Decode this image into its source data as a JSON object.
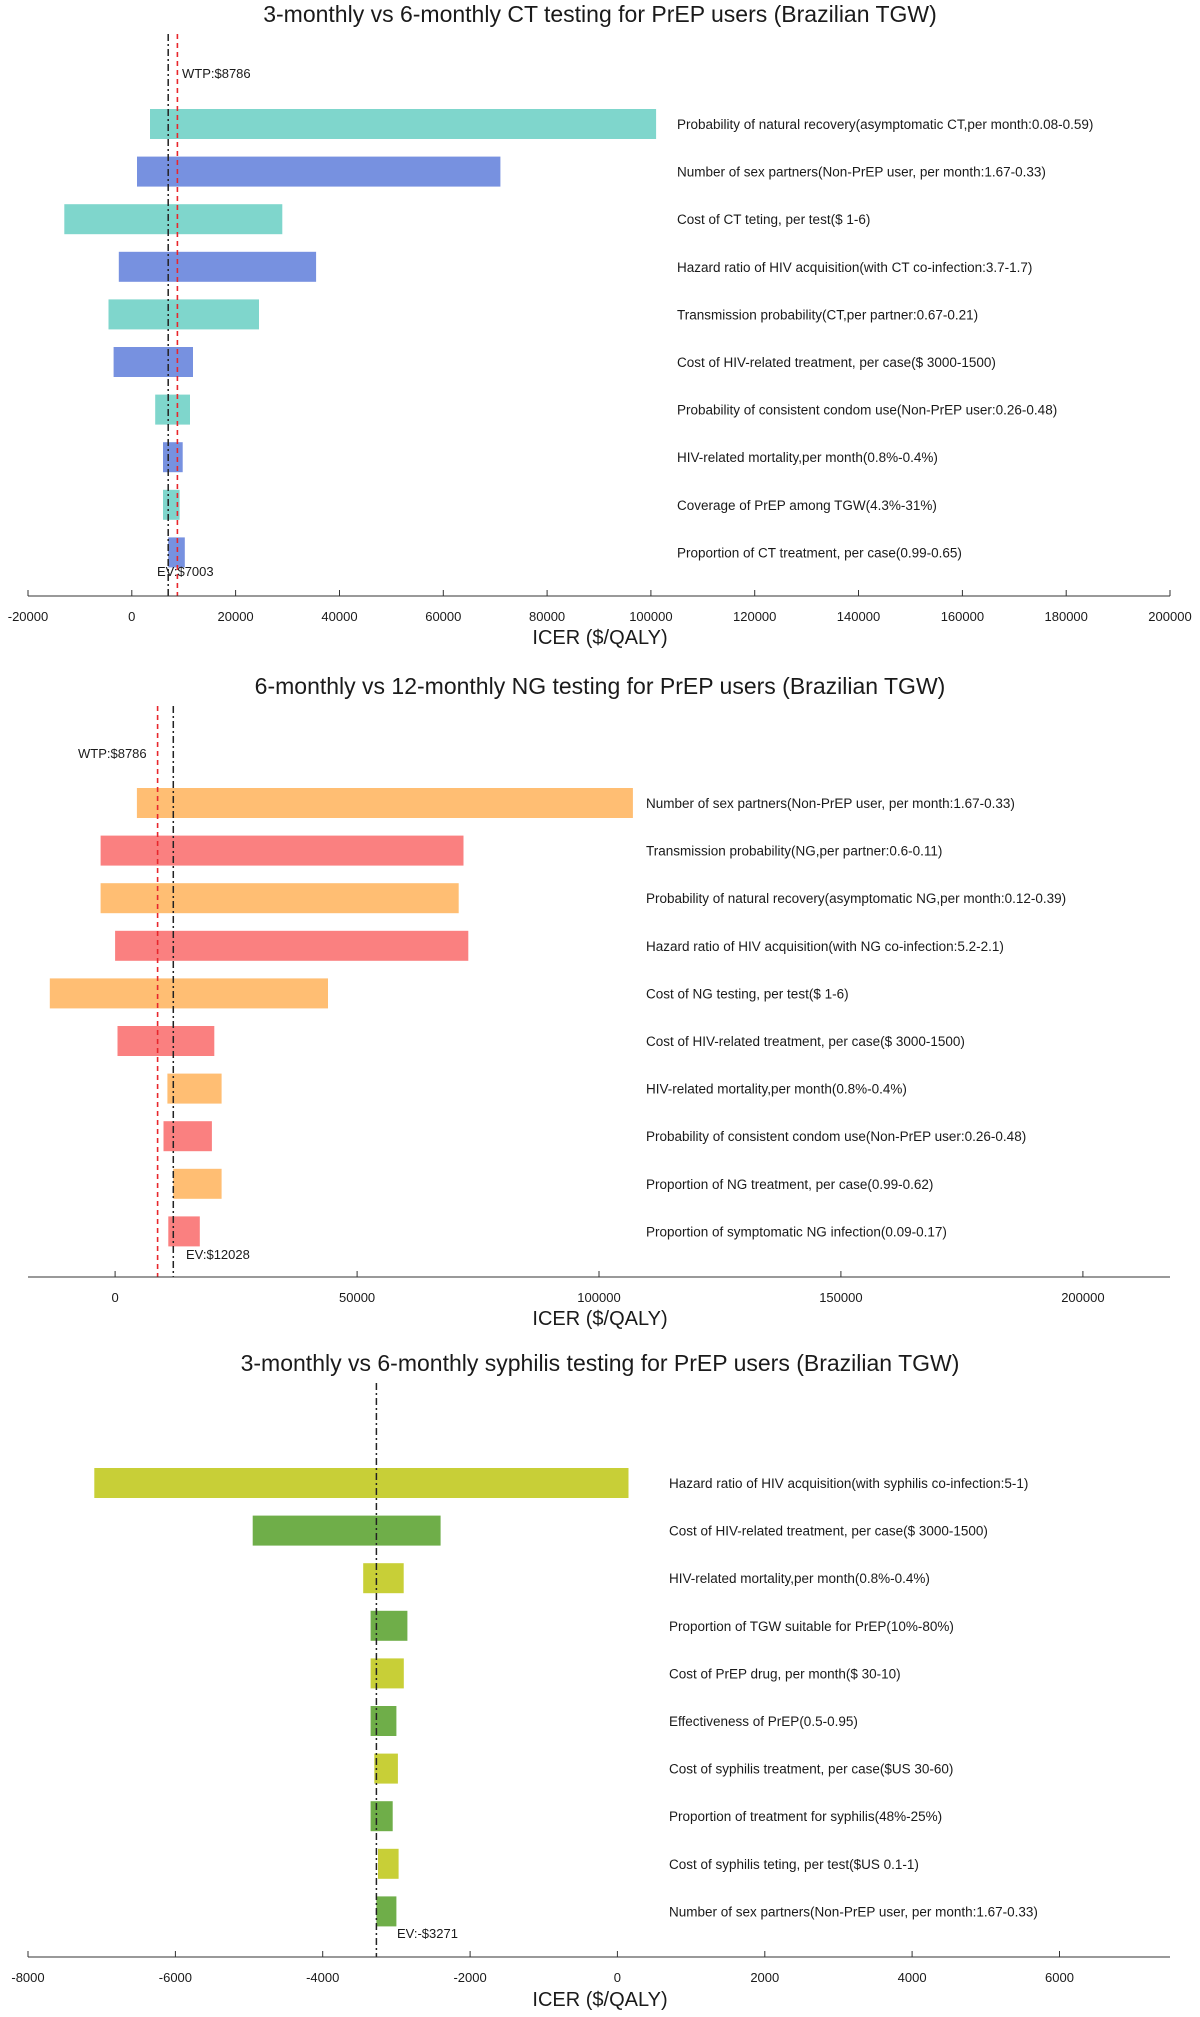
{
  "chart_data": [
    {
      "type": "bar",
      "subtype": "tornado",
      "title": "3-monthly vs 6-monthly CT testing for PrEP users (Brazilian TGW)",
      "xlabel": "ICER ($/QALY)",
      "xlim": [
        -20000,
        200000
      ],
      "xticks": [
        -20000,
        0,
        20000,
        40000,
        60000,
        80000,
        100000,
        120000,
        140000,
        160000,
        180000,
        200000
      ],
      "xtick_labels": [
        "-20000",
        "0",
        "20000",
        "40000",
        "60000",
        "80000",
        "100000",
        "120000",
        "140000",
        "160000",
        "180000",
        "200000"
      ],
      "colors": [
        "#7fd6cc",
        "#7791e0"
      ],
      "ev": 7003,
      "ev_label": "EV:$7003",
      "wtp": 8786,
      "wtp_label": "WTP:$8786",
      "parameters": [
        {
          "label": "Probability of natural recovery(asymptomatic CT,per month:0.08-0.59)",
          "low": 3500,
          "high": 101000
        },
        {
          "label": "Number of sex partners(Non-PrEP user, per month:1.67-0.33)",
          "low": 1000,
          "high": 71000
        },
        {
          "label": "Cost of CT teting, per test($ 1-6)",
          "low": -13000,
          "high": 29000
        },
        {
          "label": "Hazard ratio of HIV acquisition(with CT co-infection:3.7-1.7)",
          "low": -2500,
          "high": 35500
        },
        {
          "label": "Transmission probability(CT,per partner:0.67-0.21)",
          "low": -4500,
          "high": 24500
        },
        {
          "label": "Cost of HIV-related treatment, per case($ 3000-1500)",
          "low": -3500,
          "high": 11800
        },
        {
          "label": "Probability of consistent condom use(Non-PrEP user:0.26-0.48)",
          "low": 4500,
          "high": 11200
        },
        {
          "label": "HIV-related mortality,per month(0.8%-0.4%)",
          "low": 6000,
          "high": 9800
        },
        {
          "label": "Coverage of PrEP among TGW(4.3%-31%)",
          "low": 6000,
          "high": 9200
        },
        {
          "label": "Proportion of CT treatment, per case(0.99-0.65)",
          "low": 7000,
          "high": 10200
        }
      ]
    },
    {
      "type": "bar",
      "subtype": "tornado",
      "title": "6-monthly vs 12-monthly NG testing for PrEP users (Brazilian TGW)",
      "xlabel": "ICER ($/QALY)",
      "xlim": [
        -18000,
        218000
      ],
      "xticks": [
        0,
        50000,
        100000,
        150000,
        200000
      ],
      "xtick_labels": [
        "0",
        "50000",
        "100000",
        "150000",
        "200000"
      ],
      "colors": [
        "#ffbe73",
        "#fa8080"
      ],
      "ev": 12028,
      "ev_label": "EV:$12028",
      "wtp": 8786,
      "wtp_label": "WTP:$8786",
      "parameters": [
        {
          "label": "Number of sex partners(Non-PrEP user, per month:1.67-0.33)",
          "low": 4500,
          "high": 107000
        },
        {
          "label": "Transmission probability(NG,per partner:0.6-0.11)",
          "low": -3000,
          "high": 72000
        },
        {
          "label": "Probability of natural recovery(asymptomatic NG,per month:0.12-0.39)",
          "low": -3000,
          "high": 71000
        },
        {
          "label": "Hazard ratio of HIV acquisition(with NG co-infection:5.2-2.1)",
          "low": 0,
          "high": 73000
        },
        {
          "label": "Cost of NG testing, per test($ 1-6)",
          "low": -13500,
          "high": 44000
        },
        {
          "label": "Cost of HIV-related treatment, per case($ 3000-1500)",
          "low": 500,
          "high": 20500
        },
        {
          "label": "HIV-related mortality,per month(0.8%-0.4%)",
          "low": 10800,
          "high": 22000
        },
        {
          "label": "Probability of consistent condom use(Non-PrEP user:0.26-0.48)",
          "low": 10000,
          "high": 20000
        },
        {
          "label": "Proportion of NG treatment, per case(0.99-0.62)",
          "low": 12000,
          "high": 22000
        },
        {
          "label": "Proportion of symptomatic NG infection(0.09-0.17)",
          "low": 11000,
          "high": 17500
        }
      ]
    },
    {
      "type": "bar",
      "subtype": "tornado",
      "title": "3-monthly vs 6-monthly syphilis testing for PrEP users (Brazilian TGW)",
      "xlabel": "ICER ($/QALY)",
      "xlim": [
        -8000,
        7500
      ],
      "xticks": [
        -8000,
        -6000,
        -4000,
        -2000,
        0,
        2000,
        4000,
        6000
      ],
      "xtick_labels": [
        "-8000",
        "-6000",
        "-4000",
        "-2000",
        "0",
        "2000",
        "4000",
        "6000"
      ],
      "colors": [
        "#c8cf37",
        "#6fae49"
      ],
      "ev": -3271,
      "ev_label": "EV:-$3271",
      "parameters": [
        {
          "label": "Hazard ratio of HIV acquisition(with syphilis co-infection:5-1)",
          "low": -7100,
          "high": 150
        },
        {
          "label": "Cost of HIV-related treatment, per case($ 3000-1500)",
          "low": -4950,
          "high": -2400
        },
        {
          "label": "HIV-related mortality,per month(0.8%-0.4%)",
          "low": -3450,
          "high": -2900
        },
        {
          "label": "Proportion of TGW suitable for PrEP(10%-80%)",
          "low": -3350,
          "high": -2850
        },
        {
          "label": "Cost of PrEP drug, per month($ 30-10)",
          "low": -3350,
          "high": -2900
        },
        {
          "label": "Effectiveness of PrEP(0.5-0.95)",
          "low": -3350,
          "high": -3000
        },
        {
          "label": "Cost of syphilis treatment, per case($US 30-60)",
          "low": -3300,
          "high": -2980
        },
        {
          "label": "Proportion of treatment for syphilis(48%-25%)",
          "low": -3350,
          "high": -3050
        },
        {
          "label": "Cost of syphilis teting, per test($US 0.1-1)",
          "low": -3250,
          "high": -2970
        },
        {
          "label": "Number of sex partners(Non-PrEP user, per month:1.67-0.33)",
          "low": -3271,
          "high": -3000
        }
      ]
    }
  ]
}
